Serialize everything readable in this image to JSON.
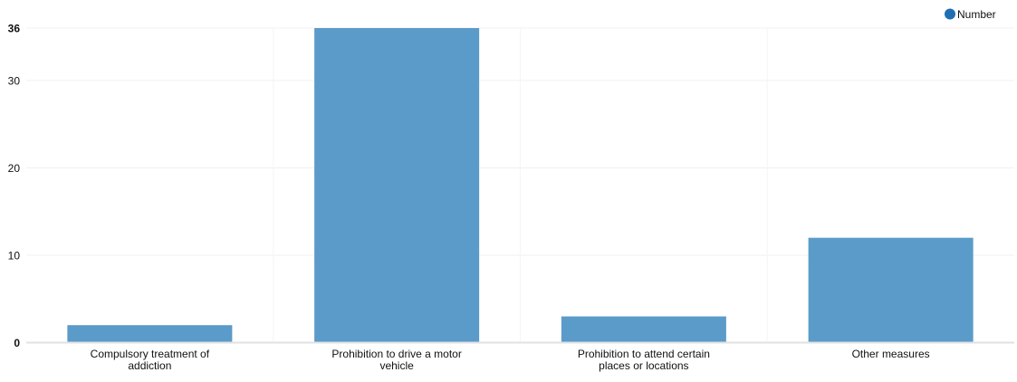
{
  "chart_data": {
    "type": "bar",
    "title": "",
    "xlabel": "",
    "ylabel": "",
    "categories": [
      "Compulsory treatment of addiction",
      "Prohibition to drive a motor vehicle",
      "Prohibition to attend certain places or locations",
      "Other measures"
    ],
    "category_label_lines": [
      [
        "Compulsory treatment of",
        "addiction"
      ],
      [
        "Prohibition to drive a motor",
        "vehicle"
      ],
      [
        "Prohibition to attend certain",
        "places or locations"
      ],
      [
        "Other measures"
      ]
    ],
    "series": [
      {
        "name": "Number",
        "color": "#5b9bc9",
        "values": [
          2,
          36,
          3,
          12
        ]
      }
    ],
    "ylim": [
      0,
      36
    ],
    "yticks": [
      {
        "value": 0,
        "label": "0",
        "bold": true
      },
      {
        "value": 10,
        "label": "10",
        "bold": false
      },
      {
        "value": 20,
        "label": "20",
        "bold": false
      },
      {
        "value": 30,
        "label": "30",
        "bold": false
      },
      {
        "value": 36,
        "label": "36",
        "bold": true
      }
    ],
    "grid": true,
    "legend": {
      "position": "top-right",
      "marker_color": "#1f6fb2",
      "label": "Number"
    }
  }
}
